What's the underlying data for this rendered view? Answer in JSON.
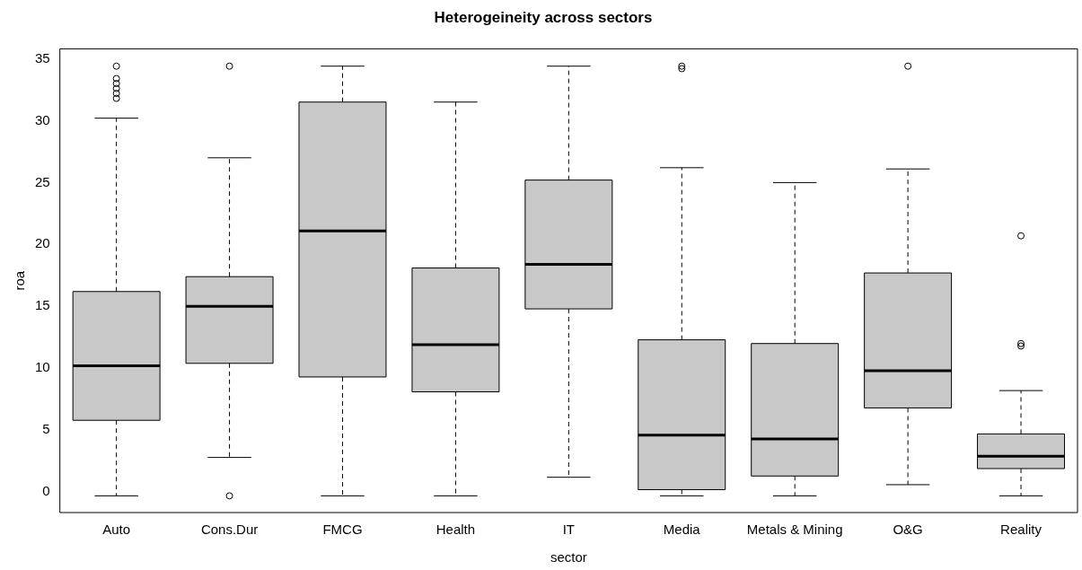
{
  "chart_data": {
    "type": "box",
    "title": "Heterogeineity across sectors",
    "xlabel": "sector",
    "ylabel": "roa",
    "categories": [
      "Auto",
      "Cons.Dur",
      "FMCG",
      "Health",
      "IT",
      "Media",
      "Metals & Mining",
      "O&G",
      "Reality"
    ],
    "color": "#c8c8c8",
    "boxes": [
      {
        "low": -0.3,
        "q1": 5.8,
        "median": 10.2,
        "q3": 16.2,
        "high": 30.2,
        "outliers": [
          31.8,
          32.2,
          32.6,
          33.0,
          33.4,
          34.4
        ]
      },
      {
        "low": 2.8,
        "q1": 10.4,
        "median": 15.0,
        "q3": 17.4,
        "high": 27.0,
        "outliers": [
          34.4,
          -0.3
        ]
      },
      {
        "low": -0.3,
        "q1": 9.3,
        "median": 21.1,
        "q3": 31.5,
        "high": 34.4
      },
      {
        "low": -0.3,
        "q1": 8.1,
        "median": 11.9,
        "q3": 18.1,
        "high": 31.5
      },
      {
        "low": 1.2,
        "q1": 14.8,
        "median": 18.4,
        "q3": 25.2,
        "high": 34.4
      },
      {
        "low": -0.3,
        "q1": 0.2,
        "median": 4.6,
        "q3": 12.3,
        "high": 26.2,
        "outliers": [
          34.2,
          34.4
        ]
      },
      {
        "low": -0.3,
        "q1": 1.3,
        "median": 4.3,
        "q3": 12.0,
        "high": 25.0
      },
      {
        "low": 0.6,
        "q1": 6.8,
        "median": 9.8,
        "q3": 17.7,
        "high": 26.1,
        "outliers": [
          34.4
        ]
      },
      {
        "low": -0.3,
        "q1": 1.9,
        "median": 2.9,
        "q3": 4.7,
        "high": 8.2,
        "outliers": [
          11.8,
          12.0,
          20.7
        ]
      }
    ],
    "ylim": [
      -1.65,
      35.8
    ],
    "yticks": [
      0,
      5,
      10,
      15,
      20,
      25,
      30,
      35
    ],
    "grid": false,
    "legend": false,
    "line_style": "dashed",
    "marker": "circle"
  }
}
